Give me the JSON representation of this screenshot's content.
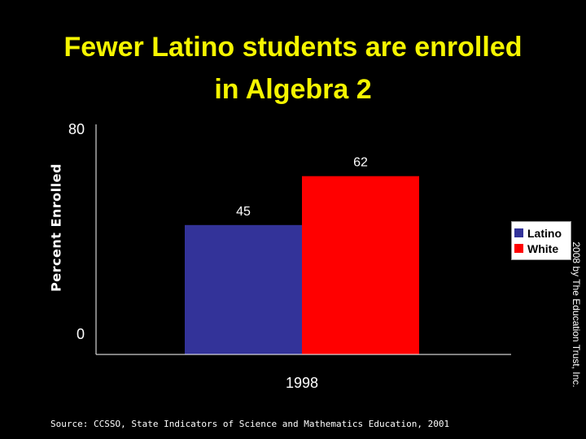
{
  "slide": {
    "title_line1": "Fewer Latino students are enrolled",
    "title_line2": "in Algebra 2",
    "copyright": "2008 by The Education Trust, Inc.",
    "source": "Source: CCSSO, State Indicators of Science and Mathematics Education, 2001"
  },
  "colors": {
    "background": "#000000",
    "title": "#f5f500",
    "text": "#ffffff",
    "latino": "#333399",
    "white": "#ff0000"
  },
  "chart_data": {
    "type": "bar",
    "categories": [
      "1998"
    ],
    "series": [
      {
        "name": "Latino",
        "values": [
          45
        ],
        "color": "#333399"
      },
      {
        "name": "White",
        "values": [
          62
        ],
        "color": "#ff0000"
      }
    ],
    "title": "",
    "xlabel": "",
    "ylabel": "Percent Enrolled",
    "ylim": [
      0,
      80
    ],
    "yticks": [
      "0",
      "80"
    ],
    "data_labels": [
      "45",
      "62"
    ],
    "legend_position": "right",
    "grid": false
  }
}
